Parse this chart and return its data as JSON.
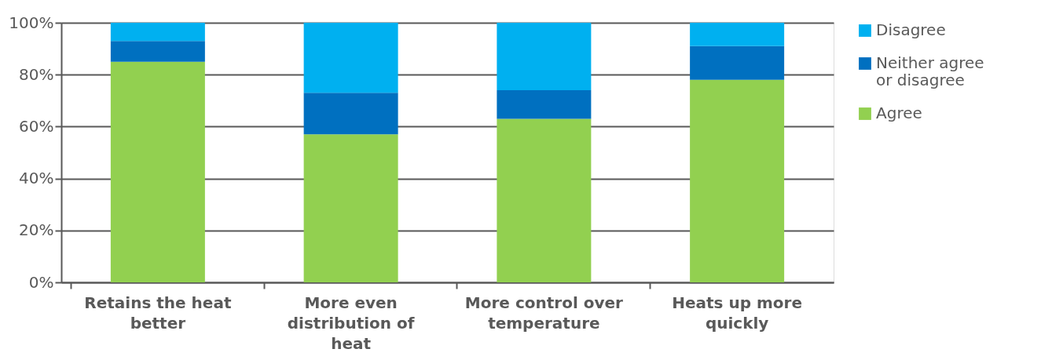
{
  "chart_data": {
    "type": "bar",
    "stacked": true,
    "categories": [
      "Retains the heat better",
      "More even distribution of heat",
      "More control over temperature",
      "Heats up more quickly"
    ],
    "series": [
      {
        "name": "Agree",
        "color": "#92d050",
        "values": [
          85,
          57,
          63,
          78
        ]
      },
      {
        "name": "Neither agree or disagree",
        "color": "#0070c0",
        "values": [
          8,
          16,
          11,
          13
        ]
      },
      {
        "name": "Disagree",
        "color": "#00b0f0",
        "values": [
          7,
          27,
          26,
          9
        ]
      }
    ],
    "ylim": [
      0,
      100
    ],
    "yticks": [
      {
        "value": 0,
        "label": "0%"
      },
      {
        "value": 20,
        "label": "20%"
      },
      {
        "value": 40,
        "label": "40%"
      },
      {
        "value": 60,
        "label": "60%"
      },
      {
        "value": 80,
        "label": "80%"
      },
      {
        "value": 100,
        "label": "100%"
      }
    ],
    "grid": "y",
    "legend": "right"
  }
}
